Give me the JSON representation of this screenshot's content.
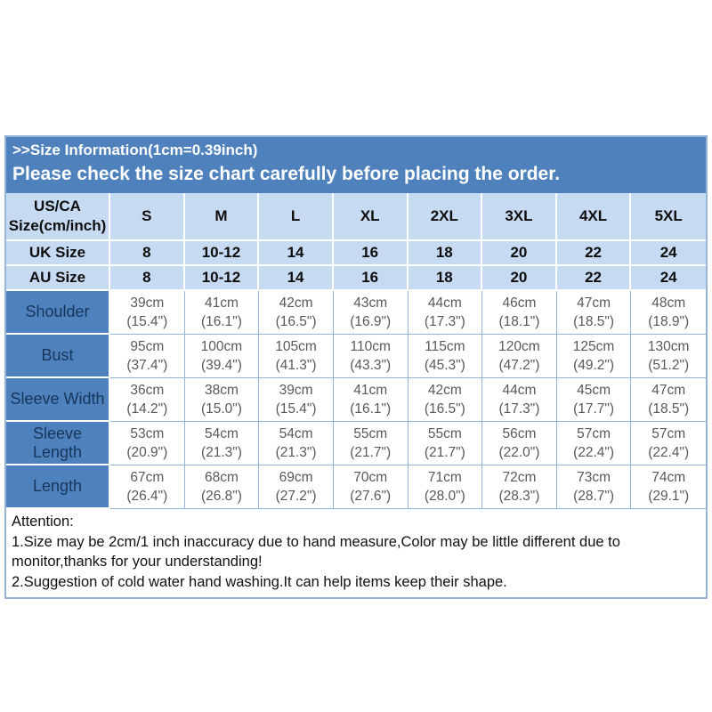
{
  "banner": {
    "line1": ">>Size Information(1cm=0.39inch)",
    "line2": "Please check the size chart carefully before placing the order."
  },
  "table": {
    "header": [
      "US/CA\nSize(cm/inch)",
      "S",
      "M",
      "L",
      "XL",
      "2XL",
      "3XL",
      "4XL",
      "5XL"
    ],
    "size_rows": [
      {
        "label": "UK Size",
        "values": [
          "8",
          "10-12",
          "14",
          "16",
          "18",
          "20",
          "22",
          "24"
        ]
      },
      {
        "label": "AU Size",
        "values": [
          "8",
          "10-12",
          "14",
          "16",
          "18",
          "20",
          "22",
          "24"
        ]
      }
    ],
    "measure_rows": [
      {
        "label": "Shoulder",
        "cells": [
          {
            "cm": "39cm",
            "in": "(15.4\")"
          },
          {
            "cm": "41cm",
            "in": "(16.1\")"
          },
          {
            "cm": "42cm",
            "in": "(16.5\")"
          },
          {
            "cm": "43cm",
            "in": "(16.9\")"
          },
          {
            "cm": "44cm",
            "in": "(17.3\")"
          },
          {
            "cm": "46cm",
            "in": "(18.1\")"
          },
          {
            "cm": "47cm",
            "in": "(18.5\")"
          },
          {
            "cm": "48cm",
            "in": "(18.9\")"
          }
        ]
      },
      {
        "label": "Bust",
        "cells": [
          {
            "cm": "95cm",
            "in": "(37.4\")"
          },
          {
            "cm": "100cm",
            "in": "(39.4\")"
          },
          {
            "cm": "105cm",
            "in": "(41.3\")"
          },
          {
            "cm": "110cm",
            "in": "(43.3\")"
          },
          {
            "cm": "115cm",
            "in": "(45.3\")"
          },
          {
            "cm": "120cm",
            "in": "(47.2\")"
          },
          {
            "cm": "125cm",
            "in": "(49.2\")"
          },
          {
            "cm": "130cm",
            "in": "(51.2\")"
          }
        ]
      },
      {
        "label": "Sleeve Width",
        "cells": [
          {
            "cm": "36cm",
            "in": "(14.2\")"
          },
          {
            "cm": "38cm",
            "in": "(15.0\")"
          },
          {
            "cm": "39cm",
            "in": "(15.4\")"
          },
          {
            "cm": "41cm",
            "in": "(16.1\")"
          },
          {
            "cm": "42cm",
            "in": "(16.5\")"
          },
          {
            "cm": "44cm",
            "in": "(17.3\")"
          },
          {
            "cm": "45cm",
            "in": "(17.7\")"
          },
          {
            "cm": "47cm",
            "in": "(18.5\")"
          }
        ]
      },
      {
        "label": "Sleeve Length",
        "cells": [
          {
            "cm": "53cm",
            "in": "(20.9\")"
          },
          {
            "cm": "54cm",
            "in": "(21.3\")"
          },
          {
            "cm": "54cm",
            "in": "(21.3\")"
          },
          {
            "cm": "55cm",
            "in": "(21.7\")"
          },
          {
            "cm": "55cm",
            "in": "(21.7\")"
          },
          {
            "cm": "56cm",
            "in": "(22.0\")"
          },
          {
            "cm": "57cm",
            "in": "(22.4\")"
          },
          {
            "cm": "57cm",
            "in": "(22.4\")"
          }
        ]
      },
      {
        "label": "Length",
        "cells": [
          {
            "cm": "67cm",
            "in": "(26.4\")"
          },
          {
            "cm": "68cm",
            "in": "(26.8\")"
          },
          {
            "cm": "69cm",
            "in": "(27.2\")"
          },
          {
            "cm": "70cm",
            "in": "(27.6\")"
          },
          {
            "cm": "71cm",
            "in": "(28.0\")"
          },
          {
            "cm": "72cm",
            "in": "(28.3\")"
          },
          {
            "cm": "73cm",
            "in": "(28.7\")"
          },
          {
            "cm": "74cm",
            "in": "(29.1\")"
          }
        ]
      }
    ]
  },
  "attention": {
    "heading": "Attention:",
    "items": [
      "1.Size may be 2cm/1 inch inaccuracy due to hand measure,Color may be little different due to monitor,thanks for your understanding!",
      "2.Suggestion of cold water hand washing.It can help items keep their shape."
    ]
  },
  "colors": {
    "banner_blue": "#4f81bd",
    "header_light_blue": "#c6daf2",
    "label_cell_blue": "#4f81bd",
    "label_text_navy": "#16365c",
    "data_text_gray": "#595959",
    "border_blue": "#95b3d7",
    "banner_text": "#ffffff"
  }
}
